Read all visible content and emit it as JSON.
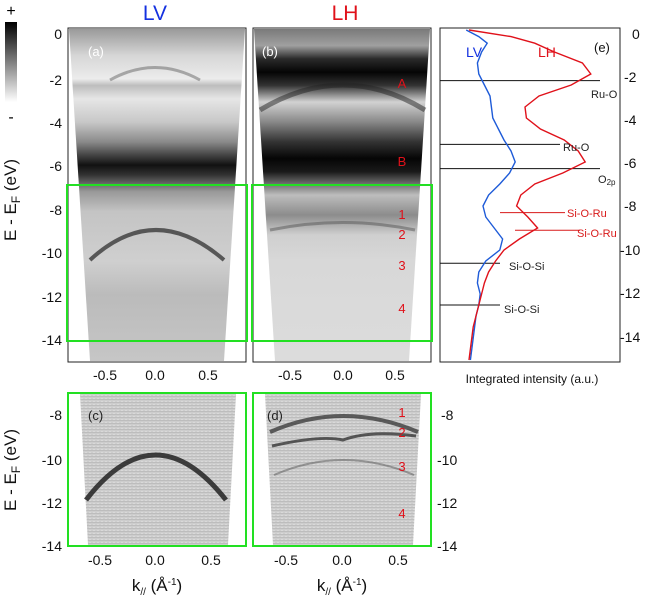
{
  "titles": {
    "left": "LV",
    "right": "LH"
  },
  "colorbar": {
    "top": "+",
    "bottom": "-"
  },
  "axes": {
    "energy_label_main": "E - E",
    "energy_label_sub": "F",
    "energy_label_unit": " (eV)",
    "k_label_main": "k",
    "k_label_sub": "//",
    "k_label_unit": " (Å",
    "k_label_exp": "-1",
    "k_label_close": ")",
    "intensity_label": "Integrated intensity (a.u.)"
  },
  "panels": [
    {
      "id": "a",
      "label": "(a)"
    },
    {
      "id": "b",
      "label": "(b)"
    },
    {
      "id": "c",
      "label": "(c)"
    },
    {
      "id": "d",
      "label": "(d)"
    },
    {
      "id": "e",
      "label": "(e)"
    }
  ],
  "ticks": {
    "energy_top": [
      "0",
      "-2",
      "-4",
      "-6",
      "-8",
      "-10",
      "-12",
      "-14"
    ],
    "energy_bottom": [
      "-8",
      "-10",
      "-12",
      "-14"
    ],
    "k": [
      "-0.5",
      "0.0",
      "0.5"
    ]
  },
  "band_labels_top": [
    "A",
    "B",
    "1",
    "2",
    "3",
    "4"
  ],
  "band_labels_bottom": [
    "1",
    "2",
    "3",
    "4"
  ],
  "annotations": {
    "ru_o_1": "Ru-O",
    "ru_o_2": "Ru-O",
    "o2p_main": "O",
    "o2p_sub": "2p",
    "si_o_ru_1": "Si-O-Ru",
    "si_o_ru_2": "Si-O-Ru",
    "si_o_si_1": "Si-O-Si",
    "si_o_si_2": "Si-O-Si"
  },
  "colors": {
    "lv": "#1431e0",
    "lh": "#e0111a",
    "highlight": "#22e022",
    "annotation_red": "#d81a1a"
  },
  "chart_data": {
    "type": "line",
    "title": "",
    "xlabel": "Integrated intensity (a.u.)",
    "ylabel": "E - EF (eV)",
    "ylim": [
      -15,
      0
    ],
    "series": [
      {
        "name": "LV",
        "energy": [
          0,
          -0.3,
          -0.6,
          -1,
          -1.5,
          -2,
          -2.5,
          -3,
          -3.5,
          -4,
          -4.5,
          -5,
          -5.5,
          -6,
          -6.5,
          -7,
          -7.5,
          -8,
          -8.5,
          -9,
          -9.5,
          -10,
          -10.5,
          -11,
          -11.5,
          -12,
          -12.5,
          -13,
          -13.5,
          -14,
          -14.5,
          -15
        ],
        "intensity": [
          0.03,
          0.12,
          0.18,
          0.14,
          0.11,
          0.12,
          0.16,
          0.2,
          0.21,
          0.22,
          0.26,
          0.3,
          0.35,
          0.38,
          0.34,
          0.27,
          0.19,
          0.15,
          0.17,
          0.23,
          0.29,
          0.27,
          0.17,
          0.12,
          0.11,
          0.13,
          0.12,
          0.1,
          0.09,
          0.08,
          0.07,
          0.06
        ]
      },
      {
        "name": "LH",
        "energy": [
          0,
          -0.3,
          -0.6,
          -1,
          -1.5,
          -2,
          -2.5,
          -3,
          -3.5,
          -4,
          -4.5,
          -5,
          -5.5,
          -6,
          -6.5,
          -7,
          -7.5,
          -8,
          -8.5,
          -9,
          -9.5,
          -10,
          -10.5,
          -11,
          -11.5,
          -12,
          -12.5,
          -13,
          -13.5,
          -14,
          -14.5,
          -15
        ],
        "intensity": [
          0.05,
          0.35,
          0.52,
          0.66,
          0.86,
          0.92,
          0.78,
          0.55,
          0.45,
          0.46,
          0.56,
          0.73,
          0.83,
          0.88,
          0.72,
          0.52,
          0.42,
          0.39,
          0.47,
          0.54,
          0.41,
          0.3,
          0.24,
          0.19,
          0.16,
          0.14,
          0.12,
          0.1,
          0.08,
          0.07,
          0.06,
          0.05
        ]
      }
    ],
    "reference_lines_energy": [
      -2.3,
      -5.2,
      -6.3,
      -8.3,
      -9.1,
      -10.6,
      -12.5
    ]
  }
}
